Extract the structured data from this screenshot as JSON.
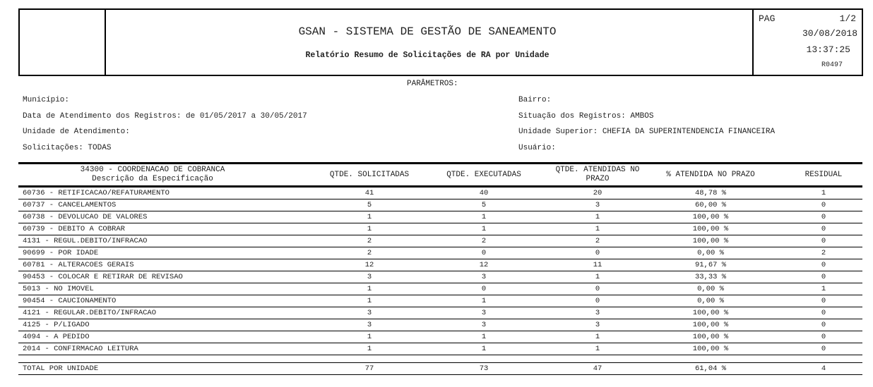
{
  "header": {
    "title": "GSAN - SISTEMA DE GESTÃO DE SANEAMENTO",
    "subtitle": "Relatório Resumo de Solicitações de RA por Unidade",
    "page_label": "PAG",
    "page": "1/2",
    "date": "30/08/2018",
    "time": "13:37:25",
    "report_code": "R0497"
  },
  "params": {
    "heading": "PARÂMETROS:",
    "municipio": "Município:",
    "data_atendimento": "Data de Atendimento dos Registros: de 01/05/2017 a 30/05/2017",
    "unidade_atendimento": "Unidade de Atendimento:",
    "solicitacoes": "Solicitações: TODAS",
    "bairro": "Bairro:",
    "situacao": "Situação dos Registros: AMBOS",
    "unidade_superior": "Unidade Superior: CHEFIA DA SUPERINTENDENCIA FINANCEIRA",
    "usuario": "Usuário:"
  },
  "table": {
    "unit": "34300 - COORDENACAO DE COBRANCA",
    "columns": [
      "Descrição da Especificação",
      "QTDE. SOLICITADAS",
      "QTDE. EXECUTADAS",
      "QTDE. ATENDIDAS NO PRAZO",
      "% ATENDIDA NO PRAZO",
      "RESIDUAL"
    ],
    "rows": [
      [
        "60736 - RETIFICACAO/REFATURAMENTO",
        "41",
        "40",
        "20",
        "48,78 %",
        "1"
      ],
      [
        "60737 - CANCELAMENTOS",
        "5",
        "5",
        "3",
        "60,00 %",
        "0"
      ],
      [
        "60738 - DEVOLUCAO DE VALORES",
        "1",
        "1",
        "1",
        "100,00 %",
        "0"
      ],
      [
        "60739 - DEBITO A COBRAR",
        "1",
        "1",
        "1",
        "100,00 %",
        "0"
      ],
      [
        "4131 - REGUL.DEBITO/INFRACAO",
        "2",
        "2",
        "2",
        "100,00 %",
        "0"
      ],
      [
        "90699 - POR IDADE",
        "2",
        "0",
        "0",
        "0,00 %",
        "2"
      ],
      [
        "60781 - ALTERACOES GERAIS",
        "12",
        "12",
        "11",
        "91,67 %",
        "0"
      ],
      [
        "90453 - COLOCAR E RETIRAR DE REVISAO",
        "3",
        "3",
        "1",
        "33,33 %",
        "0"
      ],
      [
        "5013 - NO IMOVEL",
        "1",
        "0",
        "0",
        "0,00 %",
        "1"
      ],
      [
        "90454 - CAUCIONAMENTO",
        "1",
        "1",
        "0",
        "0,00 %",
        "0"
      ],
      [
        "4121 - REGULAR.DEBITO/INFRACAO",
        "3",
        "3",
        "3",
        "100,00 %",
        "0"
      ],
      [
        "4125 - P/LIGADO",
        "3",
        "3",
        "3",
        "100,00 %",
        "0"
      ],
      [
        "4094 - A PEDIDO",
        "1",
        "1",
        "1",
        "100,00 %",
        "0"
      ],
      [
        "2014 - CONFIRMACAO LEITURA",
        "1",
        "1",
        "1",
        "100,00 %",
        "0"
      ]
    ],
    "total": [
      "TOTAL POR UNIDADE",
      "77",
      "73",
      "47",
      "61,04 %",
      "4"
    ]
  }
}
